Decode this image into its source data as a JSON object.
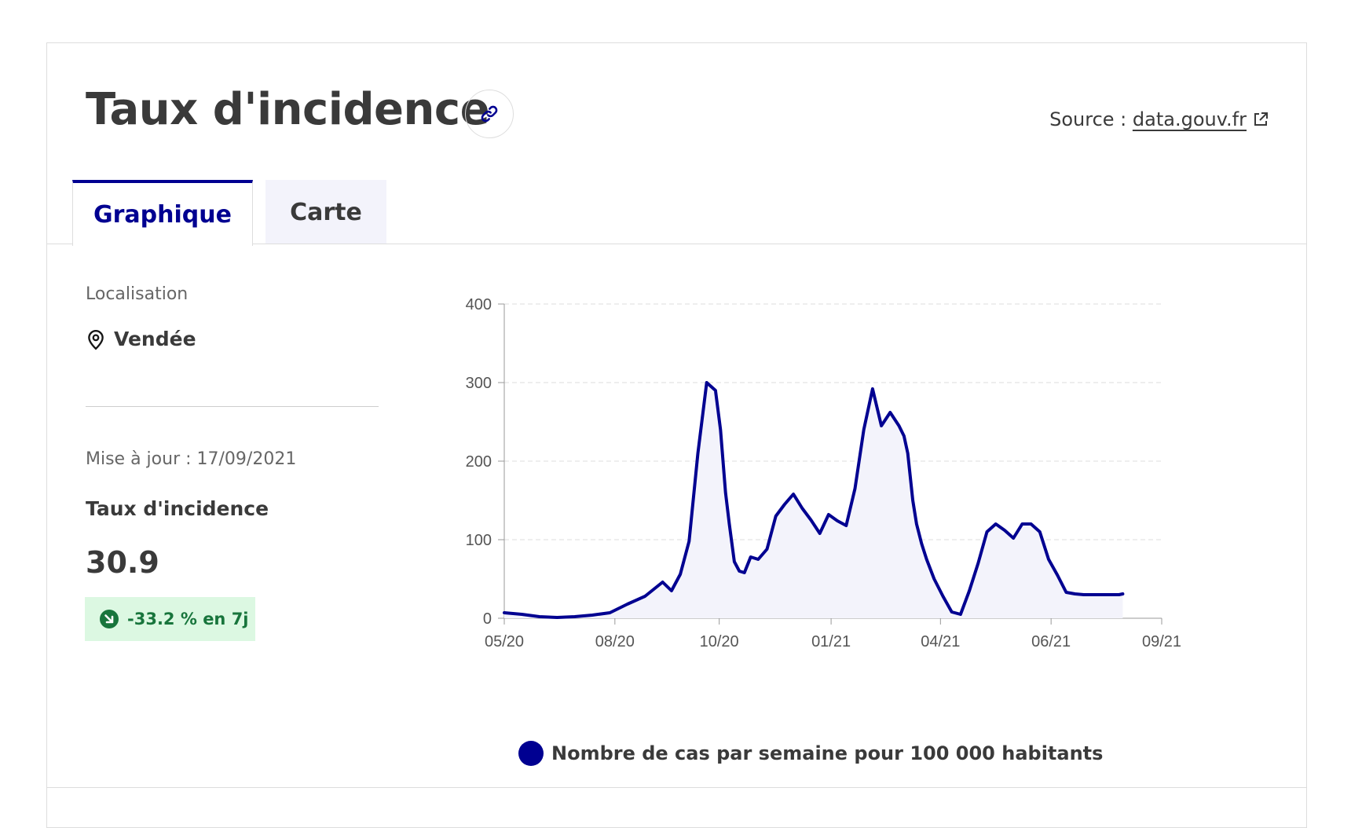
{
  "header": {
    "title": "Taux d'incidence",
    "source_prefix": "Source : ",
    "source_link": "data.gouv.fr"
  },
  "tabs": [
    {
      "label": "Graphique",
      "active": true
    },
    {
      "label": "Carte",
      "active": false
    }
  ],
  "sidebar": {
    "location_label": "Localisation",
    "location_value": "Vendée",
    "update_text": "Mise à jour : 17/09/2021",
    "metric_label": "Taux d'incidence",
    "metric_value": "30.9",
    "change_text": "-33.2 % en 7j"
  },
  "colors": {
    "accent": "#000091",
    "positive": "#18753c",
    "positive_bg": "#dcf8e2"
  },
  "icons": {
    "link": "link-icon",
    "external": "external-link-icon",
    "location": "map-pin-icon",
    "trend": "arrow-down-right-icon"
  },
  "chart_data": {
    "type": "area",
    "series": [
      {
        "name": "Nombre de cas par semaine pour 100 000 habitants",
        "x": [
          "2020-05-13",
          "2020-05-27",
          "2020-06-10",
          "2020-06-24",
          "2020-07-08",
          "2020-07-22",
          "2020-08-05",
          "2020-08-19",
          "2020-09-02",
          "2020-09-16",
          "2020-09-23",
          "2020-09-30",
          "2020-10-07",
          "2020-10-14",
          "2020-10-21",
          "2020-10-28",
          "2020-11-01",
          "2020-11-05",
          "2020-11-08",
          "2020-11-12",
          "2020-11-16",
          "2020-11-20",
          "2020-11-25",
          "2020-12-01",
          "2020-12-08",
          "2020-12-15",
          "2020-12-22",
          "2020-12-29",
          "2021-01-05",
          "2021-01-12",
          "2021-01-19",
          "2021-01-26",
          "2021-02-02",
          "2021-02-09",
          "2021-02-16",
          "2021-02-23",
          "2021-03-02",
          "2021-03-09",
          "2021-03-16",
          "2021-03-23",
          "2021-03-27",
          "2021-03-30",
          "2021-04-03",
          "2021-04-06",
          "2021-04-10",
          "2021-04-14",
          "2021-04-20",
          "2021-04-27",
          "2021-05-04",
          "2021-05-11",
          "2021-05-18",
          "2021-05-25",
          "2021-06-01",
          "2021-06-08",
          "2021-06-15",
          "2021-06-22",
          "2021-06-29",
          "2021-07-06",
          "2021-07-13",
          "2021-07-20",
          "2021-07-27",
          "2021-08-03",
          "2021-08-10",
          "2021-08-17",
          "2021-08-24",
          "2021-08-31",
          "2021-09-07",
          "2021-09-14",
          "2021-09-17"
        ],
        "values": [
          7,
          5,
          2,
          1,
          2,
          4,
          7,
          18,
          28,
          46,
          35,
          56,
          98,
          210,
          300,
          290,
          240,
          160,
          120,
          72,
          60,
          58,
          78,
          75,
          88,
          130,
          145,
          158,
          140,
          125,
          108,
          132,
          124,
          118,
          165,
          240,
          292,
          245,
          262,
          245,
          232,
          210,
          150,
          120,
          95,
          75,
          50,
          28,
          8,
          5,
          35,
          70,
          110,
          120,
          112,
          102,
          120,
          120,
          110,
          75,
          55,
          33,
          31,
          30,
          30,
          30,
          30,
          30,
          31
        ]
      }
    ],
    "x_ticks": [
      "05/20",
      "08/20",
      "10/20",
      "01/21",
      "04/21",
      "06/21",
      "09/21"
    ],
    "x_tick_dates": [
      "2020-05-13",
      "2020-08-09",
      "2020-10-31",
      "2021-01-28",
      "2021-04-25",
      "2021-07-22",
      "2021-10-18"
    ],
    "y_ticks": [
      0,
      100,
      200,
      300,
      400
    ],
    "ylim": [
      0,
      400
    ],
    "grid": true,
    "legend_position": "bottom"
  }
}
